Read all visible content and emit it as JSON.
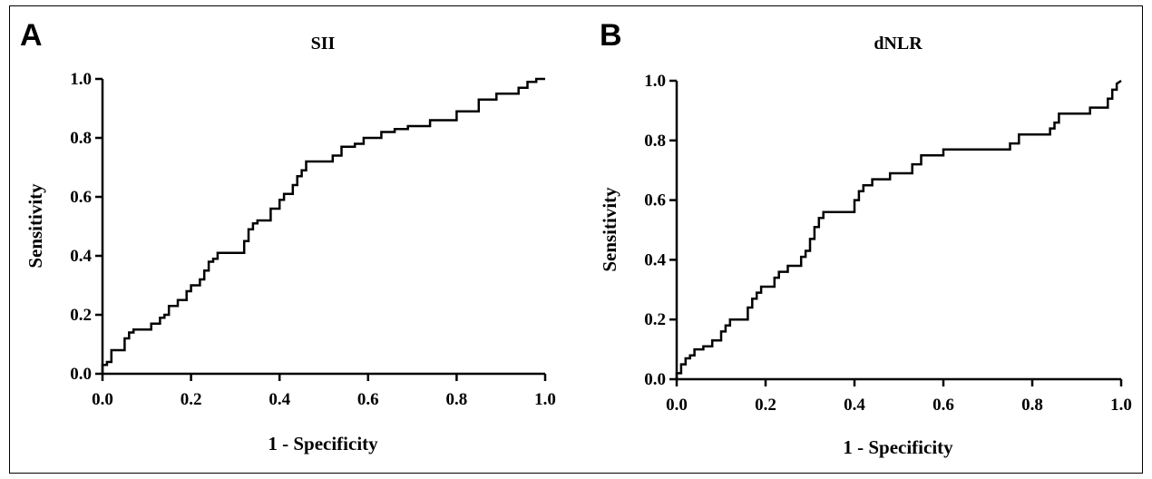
{
  "chart_data": [
    {
      "type": "line",
      "panel": "A",
      "title": "SII",
      "xlabel": "1 - Specificity",
      "ylabel": "Sensitivity",
      "xlim": [
        0,
        1
      ],
      "ylim": [
        0,
        1
      ],
      "xticks": [
        "0.0",
        "0.2",
        "0.4",
        "0.6",
        "0.8",
        "1.0"
      ],
      "yticks": [
        "0.0",
        "0.2",
        "0.4",
        "0.6",
        "0.8",
        "1.0"
      ],
      "series": [
        {
          "x": [
            0.0,
            0.0,
            0.01,
            0.01,
            0.02,
            0.02,
            0.05,
            0.05,
            0.06,
            0.06,
            0.07,
            0.07,
            0.11,
            0.11,
            0.13,
            0.13,
            0.14,
            0.14,
            0.15,
            0.15,
            0.17,
            0.17,
            0.19,
            0.19,
            0.2,
            0.2,
            0.22,
            0.22,
            0.23,
            0.23,
            0.24,
            0.24,
            0.25,
            0.25,
            0.26,
            0.26,
            0.32,
            0.32,
            0.33,
            0.33,
            0.34,
            0.34,
            0.35,
            0.35,
            0.38,
            0.38,
            0.4,
            0.4,
            0.41,
            0.41,
            0.43,
            0.43,
            0.44,
            0.44,
            0.45,
            0.45,
            0.46,
            0.46,
            0.52,
            0.52,
            0.54,
            0.54,
            0.57,
            0.57,
            0.59,
            0.59,
            0.63,
            0.63,
            0.66,
            0.66,
            0.69,
            0.69,
            0.74,
            0.74,
            0.8,
            0.8,
            0.85,
            0.85,
            0.89,
            0.89,
            0.94,
            0.94,
            0.96,
            0.96,
            0.98,
            0.98,
            1.0
          ],
          "y": [
            0.0,
            0.03,
            0.03,
            0.04,
            0.04,
            0.08,
            0.08,
            0.12,
            0.12,
            0.14,
            0.14,
            0.15,
            0.15,
            0.17,
            0.17,
            0.19,
            0.19,
            0.2,
            0.2,
            0.23,
            0.23,
            0.25,
            0.25,
            0.28,
            0.28,
            0.3,
            0.3,
            0.32,
            0.32,
            0.35,
            0.35,
            0.38,
            0.38,
            0.39,
            0.39,
            0.41,
            0.41,
            0.45,
            0.45,
            0.49,
            0.49,
            0.51,
            0.51,
            0.52,
            0.52,
            0.56,
            0.56,
            0.59,
            0.59,
            0.61,
            0.61,
            0.64,
            0.64,
            0.67,
            0.67,
            0.69,
            0.69,
            0.72,
            0.72,
            0.74,
            0.74,
            0.77,
            0.77,
            0.78,
            0.78,
            0.8,
            0.8,
            0.82,
            0.82,
            0.83,
            0.83,
            0.84,
            0.84,
            0.86,
            0.86,
            0.89,
            0.89,
            0.93,
            0.93,
            0.95,
            0.95,
            0.97,
            0.97,
            0.99,
            0.99,
            1.0,
            1.0
          ]
        }
      ]
    },
    {
      "type": "line",
      "panel": "B",
      "title": "dNLR",
      "xlabel": "1 - Specificity",
      "ylabel": "Sensitivity",
      "xlim": [
        0,
        1
      ],
      "ylim": [
        0,
        1
      ],
      "xticks": [
        "0.0",
        "0.2",
        "0.4",
        "0.6",
        "0.8",
        "1.0"
      ],
      "yticks": [
        "0.0",
        "0.2",
        "0.4",
        "0.6",
        "0.8",
        "1.0"
      ],
      "series": [
        {
          "x": [
            0.0,
            0.0,
            0.01,
            0.01,
            0.02,
            0.02,
            0.03,
            0.03,
            0.04,
            0.04,
            0.06,
            0.06,
            0.08,
            0.08,
            0.1,
            0.1,
            0.11,
            0.11,
            0.12,
            0.12,
            0.16,
            0.16,
            0.17,
            0.17,
            0.18,
            0.18,
            0.19,
            0.19,
            0.22,
            0.22,
            0.23,
            0.23,
            0.25,
            0.25,
            0.28,
            0.28,
            0.29,
            0.29,
            0.3,
            0.3,
            0.31,
            0.31,
            0.32,
            0.32,
            0.33,
            0.33,
            0.4,
            0.4,
            0.41,
            0.41,
            0.42,
            0.42,
            0.44,
            0.44,
            0.48,
            0.48,
            0.53,
            0.53,
            0.55,
            0.55,
            0.6,
            0.6,
            0.75,
            0.75,
            0.77,
            0.77,
            0.84,
            0.84,
            0.85,
            0.85,
            0.86,
            0.86,
            0.93,
            0.93,
            0.97,
            0.97,
            0.98,
            0.98,
            0.99,
            0.99,
            1.0
          ],
          "y": [
            0.0,
            0.02,
            0.02,
            0.05,
            0.05,
            0.07,
            0.07,
            0.08,
            0.08,
            0.1,
            0.1,
            0.11,
            0.11,
            0.13,
            0.13,
            0.16,
            0.16,
            0.18,
            0.18,
            0.2,
            0.2,
            0.24,
            0.24,
            0.27,
            0.27,
            0.29,
            0.29,
            0.31,
            0.31,
            0.34,
            0.34,
            0.36,
            0.36,
            0.38,
            0.38,
            0.41,
            0.41,
            0.43,
            0.43,
            0.47,
            0.47,
            0.51,
            0.51,
            0.54,
            0.54,
            0.56,
            0.56,
            0.6,
            0.6,
            0.63,
            0.63,
            0.65,
            0.65,
            0.67,
            0.67,
            0.69,
            0.69,
            0.72,
            0.72,
            0.75,
            0.75,
            0.77,
            0.77,
            0.79,
            0.79,
            0.82,
            0.82,
            0.84,
            0.84,
            0.86,
            0.86,
            0.89,
            0.89,
            0.91,
            0.91,
            0.94,
            0.94,
            0.97,
            0.97,
            0.99,
            1.0
          ]
        }
      ]
    }
  ]
}
